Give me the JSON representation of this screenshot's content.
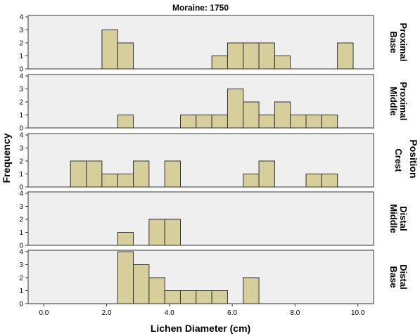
{
  "chart_data": {
    "type": "bar",
    "title": "Moraine: 1750",
    "xlabel": "Lichen Diameter (cm)",
    "ylabel": "Frequency",
    "panel_axis_label": "Position",
    "xlim": [
      -0.5,
      10.5
    ],
    "ylim": [
      0,
      4
    ],
    "bin_width": 0.5,
    "x_ticks": [
      "0.0",
      "2.0",
      "4.0",
      "6.0",
      "8.0",
      "10.0"
    ],
    "x_tick_values": [
      0,
      2,
      4,
      6,
      8,
      10
    ],
    "y_ticks": [
      "0",
      "1",
      "2",
      "3",
      "4"
    ],
    "y_tick_values": [
      0,
      1,
      2,
      3,
      4
    ],
    "bar_color": "#d6cf9c",
    "panel_color": "#efefef",
    "panels": [
      {
        "name": "Proximal Base",
        "label_lines": [
          "Proximal",
          "Base"
        ],
        "bins": [
          {
            "x": 2.1,
            "count": 3
          },
          {
            "x": 2.6,
            "count": 2
          },
          {
            "x": 5.6,
            "count": 1
          },
          {
            "x": 6.1,
            "count": 2
          },
          {
            "x": 6.6,
            "count": 2
          },
          {
            "x": 7.1,
            "count": 2
          },
          {
            "x": 7.6,
            "count": 1
          },
          {
            "x": 9.6,
            "count": 2
          }
        ]
      },
      {
        "name": "Proximal Middle",
        "label_lines": [
          "Proximal",
          "Middle"
        ],
        "bins": [
          {
            "x": 2.6,
            "count": 1
          },
          {
            "x": 4.6,
            "count": 1
          },
          {
            "x": 5.1,
            "count": 1
          },
          {
            "x": 5.6,
            "count": 1
          },
          {
            "x": 6.1,
            "count": 3
          },
          {
            "x": 6.6,
            "count": 2
          },
          {
            "x": 7.1,
            "count": 1
          },
          {
            "x": 7.6,
            "count": 2
          },
          {
            "x": 8.1,
            "count": 1
          },
          {
            "x": 8.6,
            "count": 1
          },
          {
            "x": 9.1,
            "count": 1
          }
        ]
      },
      {
        "name": "Crest",
        "label_lines": [
          "Crest"
        ],
        "bins": [
          {
            "x": 1.1,
            "count": 2
          },
          {
            "x": 1.6,
            "count": 2
          },
          {
            "x": 2.1,
            "count": 1
          },
          {
            "x": 2.6,
            "count": 1
          },
          {
            "x": 3.1,
            "count": 2
          },
          {
            "x": 4.1,
            "count": 2
          },
          {
            "x": 6.6,
            "count": 1
          },
          {
            "x": 7.1,
            "count": 2
          },
          {
            "x": 8.6,
            "count": 1
          },
          {
            "x": 9.1,
            "count": 1
          }
        ]
      },
      {
        "name": "Distal Middle",
        "label_lines": [
          "Distal",
          "Middle"
        ],
        "bins": [
          {
            "x": 2.6,
            "count": 1
          },
          {
            "x": 3.6,
            "count": 2
          },
          {
            "x": 4.1,
            "count": 2
          }
        ]
      },
      {
        "name": "Distal Base",
        "label_lines": [
          "Distal",
          "Base"
        ],
        "bins": [
          {
            "x": 2.6,
            "count": 4
          },
          {
            "x": 3.1,
            "count": 3
          },
          {
            "x": 3.6,
            "count": 2
          },
          {
            "x": 4.1,
            "count": 1
          },
          {
            "x": 4.6,
            "count": 1
          },
          {
            "x": 5.1,
            "count": 1
          },
          {
            "x": 5.6,
            "count": 1
          },
          {
            "x": 6.6,
            "count": 2
          }
        ]
      }
    ]
  }
}
